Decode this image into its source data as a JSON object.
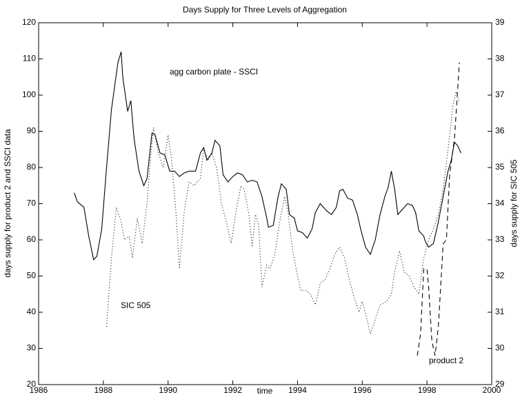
{
  "chart_data": {
    "type": "line",
    "title": "Days Supply for Three Levels of Aggregation",
    "x_label": "time",
    "y_label": "days supply for product 2 and SSCI data",
    "y2_label": "days supply for SIC 505",
    "xlim": [
      1986,
      2000
    ],
    "xticks": [
      1986,
      1988,
      1990,
      1992,
      1994,
      1996,
      1998,
      2000
    ],
    "ylim": [
      20,
      120
    ],
    "yticks": [
      20,
      30,
      40,
      50,
      60,
      70,
      80,
      90,
      100,
      110,
      120
    ],
    "y2lim": [
      29,
      39
    ],
    "y2ticks": [
      29,
      30,
      31,
      32,
      33,
      34,
      35,
      36,
      37,
      38,
      39
    ],
    "grid": false,
    "series": [
      {
        "name": "agg carbon plate - SSCI",
        "color": "#000000",
        "line_style": "solid",
        "axis": "y",
        "x": [
          1987.1,
          1987.2,
          1987.4,
          1987.55,
          1987.7,
          1987.8,
          1987.95,
          1988.1,
          1988.25,
          1988.45,
          1988.55,
          1988.6,
          1988.75,
          1988.85,
          1988.95,
          1989.1,
          1989.25,
          1989.35,
          1989.5,
          1989.6,
          1989.75,
          1989.9,
          1990.05,
          1990.2,
          1990.35,
          1990.5,
          1990.65,
          1990.85,
          1991.0,
          1991.1,
          1991.2,
          1991.35,
          1991.45,
          1991.6,
          1991.7,
          1991.85,
          1992.0,
          1992.15,
          1992.3,
          1992.45,
          1992.6,
          1992.75,
          1992.9,
          1993.05,
          1993.1,
          1993.25,
          1993.4,
          1993.5,
          1993.65,
          1993.75,
          1993.9,
          1994.0,
          1994.15,
          1994.3,
          1994.45,
          1994.55,
          1994.7,
          1994.9,
          1995.05,
          1995.2,
          1995.3,
          1995.4,
          1995.55,
          1995.7,
          1995.85,
          1995.95,
          1996.1,
          1996.25,
          1996.4,
          1996.55,
          1996.7,
          1996.8,
          1996.9,
          1997.0,
          1997.1,
          1997.25,
          1997.4,
          1997.55,
          1997.65,
          1997.75,
          1997.9,
          1997.95,
          1998.05,
          1998.2,
          1998.35,
          1998.5,
          1998.65,
          1998.75,
          1998.85,
          1998.95,
          1999.05
        ],
        "values": [
          73,
          70.5,
          69,
          61,
          54.5,
          55.5,
          63,
          80,
          96,
          109,
          112,
          105,
          95.5,
          98.5,
          88,
          79,
          75,
          77,
          89.5,
          89,
          84,
          83.5,
          79,
          79,
          77.5,
          78.5,
          79,
          79,
          84,
          85.5,
          82,
          84,
          87.5,
          86,
          78,
          76,
          77.5,
          78.5,
          78,
          76,
          76.5,
          76,
          72,
          66,
          63.5,
          64,
          72,
          75.5,
          74,
          67,
          66,
          62.5,
          62,
          60.5,
          63,
          67.5,
          70,
          68,
          67,
          69,
          73.5,
          74,
          71.5,
          71,
          67,
          63,
          58,
          56,
          60,
          67,
          72,
          74.5,
          79,
          74,
          67,
          68.5,
          70,
          69.5,
          67.5,
          62.5,
          61,
          59.5,
          58,
          59,
          65,
          72,
          79,
          82,
          87,
          86,
          84
        ]
      },
      {
        "name": "SIC 505",
        "color": "#000000",
        "line_style": "dotted",
        "axis": "y2",
        "x": [
          1988.1,
          1988.25,
          1988.4,
          1988.55,
          1988.65,
          1988.8,
          1988.9,
          1989.05,
          1989.2,
          1989.35,
          1989.45,
          1989.55,
          1989.7,
          1989.85,
          1990.0,
          1990.1,
          1990.25,
          1990.35,
          1990.5,
          1990.65,
          1990.8,
          1991.0,
          1991.1,
          1991.25,
          1991.35,
          1991.5,
          1991.65,
          1991.8,
          1991.95,
          1992.1,
          1992.25,
          1992.35,
          1992.5,
          1992.6,
          1992.7,
          1992.8,
          1992.9,
          1993.05,
          1993.15,
          1993.3,
          1993.45,
          1993.6,
          1993.7,
          1993.85,
          1994.0,
          1994.1,
          1994.25,
          1994.4,
          1994.55,
          1994.7,
          1994.85,
          1995.0,
          1995.15,
          1995.3,
          1995.45,
          1995.6,
          1995.75,
          1995.9,
          1996.0,
          1996.15,
          1996.25,
          1996.4,
          1996.55,
          1996.75,
          1996.9,
          1997.0,
          1997.15,
          1997.3,
          1997.45,
          1997.6,
          1997.75,
          1997.9,
          1998.05,
          1998.2,
          1998.35,
          1998.5,
          1998.65,
          1998.8,
          1998.9,
          1999.0
        ],
        "values": [
          30.6,
          32.5,
          33.9,
          33.5,
          33.0,
          33.1,
          32.5,
          33.6,
          32.9,
          34.0,
          35.2,
          36.1,
          35.4,
          35.0,
          35.9,
          35.3,
          33.7,
          32.2,
          33.8,
          34.6,
          34.5,
          34.7,
          35.5,
          35.2,
          35.4,
          35.0,
          34.0,
          33.5,
          32.9,
          33.8,
          34.5,
          34.4,
          33.7,
          32.8,
          33.7,
          33.4,
          31.7,
          32.3,
          32.2,
          32.6,
          33.5,
          34.2,
          33.8,
          32.7,
          32.0,
          31.6,
          31.6,
          31.5,
          31.2,
          31.8,
          31.9,
          32.2,
          32.6,
          32.8,
          32.5,
          31.9,
          31.4,
          31.0,
          31.3,
          30.8,
          30.4,
          30.8,
          31.2,
          31.3,
          31.5,
          32.1,
          32.7,
          32.1,
          32.0,
          31.7,
          31.5,
          32.5,
          33.0,
          33.3,
          33.7,
          34.4,
          35.5,
          36.7,
          37.1,
          36.8
        ]
      },
      {
        "name": "product 2",
        "color": "#000000",
        "line_style": "dashed",
        "axis": "y",
        "x": [
          1997.7,
          1997.8,
          1997.9,
          1998.0,
          1998.05,
          1998.15,
          1998.25,
          1998.35,
          1998.5,
          1998.6,
          1998.7,
          1998.85,
          1999.0
        ],
        "values": [
          28,
          34,
          52,
          52,
          47,
          32,
          28,
          36,
          59,
          60,
          78,
          88,
          109
        ]
      }
    ]
  }
}
